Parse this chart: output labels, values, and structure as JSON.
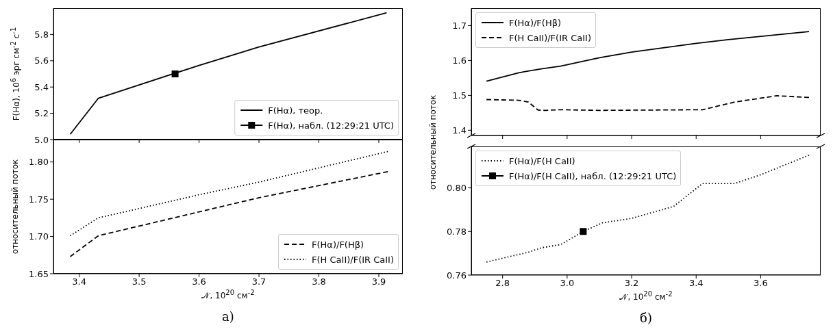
{
  "chart_data": [
    {
      "type": "line",
      "ylabel": "F(Hα), 10$^{6}$ эрг см$^{-2}$ с$^{-1}$",
      "xlim": [
        3.357,
        3.94
      ],
      "xticks": [
        3.4,
        3.5,
        3.6,
        3.7,
        3.8,
        3.9
      ],
      "ylim": [
        5.0,
        6.0
      ],
      "yticks": [
        {
          "value": 5,
          "label": "5.0"
        },
        5.2,
        5.4,
        5.6,
        5.8
      ],
      "tick_labels": "y",
      "legend": "bottom right",
      "grid": false,
      "series": [
        {
          "type": "line",
          "name": "F(Hα), теор.",
          "color": "#000000",
          "line_style": "solid",
          "marker": "none",
          "x": [
            3.385,
            3.432,
            3.6,
            3.7,
            3.913
          ],
          "values": [
            5.04,
            5.315,
            5.565,
            5.705,
            5.965
          ]
        },
        {
          "type": "line",
          "name": "F(Hα), набл. (12:29:21 UTC)",
          "color": "#000000",
          "line_style": "solid",
          "marker": "square",
          "x": [
            3.56
          ],
          "values": [
            5.5
          ]
        }
      ]
    },
    {
      "type": "line",
      "ylabel": "относительный поток",
      "xlabel": "𝒩, 10$^{20}$ см$^{-2}$",
      "annotations": [
        "а)"
      ],
      "xlim": [
        3.357,
        3.94
      ],
      "xticks": [
        3.4,
        3.5,
        3.6,
        3.7,
        3.8,
        3.9
      ],
      "ylim": [
        1.65,
        1.83
      ],
      "yticks": [
        1.65,
        {
          "value": 1.7,
          "label": "1.70"
        },
        1.75,
        {
          "value": 1.8,
          "label": "1.80"
        }
      ],
      "legend": "bottom right",
      "grid": false,
      "series": [
        {
          "type": "line",
          "name": "F(Hα)/F(Hβ)",
          "color": "#000000",
          "line_style": "dashed",
          "marker": "none",
          "x": [
            3.385,
            3.432,
            3.6,
            3.7,
            3.915
          ],
          "values": [
            1.673,
            1.701,
            1.733,
            1.752,
            1.787
          ]
        },
        {
          "type": "line",
          "name": "F(H CaII)/F(IR CaII)",
          "color": "#000000",
          "line_style": "dotted",
          "marker": "none",
          "x": [
            3.385,
            3.432,
            3.6,
            3.7,
            3.915
          ],
          "values": [
            1.701,
            1.725,
            1.756,
            1.773,
            1.814
          ]
        }
      ]
    },
    {
      "type": "line",
      "xlim": [
        2.703,
        3.786
      ],
      "xticks": [
        2.8,
        3,
        3.2,
        3.4,
        3.6
      ],
      "ylim": [
        1.385,
        1.75
      ],
      "yticks": [
        1.4,
        1.5,
        1.6,
        1.7
      ],
      "tick_labels": "y",
      "legend": "top left",
      "grid": false,
      "series": [
        {
          "type": "line",
          "name": "F(Hα)/F(Hβ)",
          "color": "#000000",
          "line_style": "solid",
          "marker": "none",
          "x": [
            2.75,
            2.85,
            2.92,
            2.98,
            3.1,
            3.2,
            3.4,
            3.5,
            3.75
          ],
          "values": [
            1.541,
            1.565,
            1.576,
            1.584,
            1.608,
            1.624,
            1.649,
            1.66,
            1.683
          ]
        },
        {
          "type": "line",
          "name": "F(H CaII)/F(IR CaII)",
          "color": "#000000",
          "line_style": "dashed",
          "marker": "none",
          "x": [
            2.75,
            2.85,
            2.88,
            2.91,
            2.93,
            2.98,
            3.1,
            3.42,
            3.52,
            3.65,
            3.75
          ],
          "values": [
            1.488,
            1.486,
            1.481,
            1.458,
            1.457,
            1.459,
            1.457,
            1.459,
            1.481,
            1.499,
            1.494
          ]
        }
      ]
    },
    {
      "type": "line",
      "ylabel": "относительный поток",
      "xlabel": "𝒩, 10$^{20}$ см$^{-2}$",
      "annotations": [
        "б)"
      ],
      "xlim": [
        2.703,
        3.786
      ],
      "xticks": [
        2.8,
        {
          "value": 3,
          "label": "3.0"
        },
        3.2,
        3.4,
        3.6
      ],
      "ylim": [
        0.76,
        0.819
      ],
      "yticks": [
        0.76,
        0.78,
        {
          "value": 0.8,
          "label": "0.80"
        }
      ],
      "legend": "top left",
      "grid": false,
      "series": [
        {
          "type": "line",
          "name": "F(Hα)/F(H CaII)",
          "color": "#000000",
          "line_style": "dotted",
          "marker": "none",
          "x": [
            2.75,
            2.88,
            2.92,
            2.98,
            3.05,
            3.11,
            3.2,
            3.33,
            3.42,
            3.52,
            3.6,
            3.75
          ],
          "values": [
            0.766,
            0.7705,
            0.7725,
            0.774,
            0.78,
            0.784,
            0.786,
            0.7915,
            0.802,
            0.802,
            0.806,
            0.815
          ]
        },
        {
          "type": "line",
          "name": "F(Hα)/F(H CaII), набл. (12:29:21 UTC)",
          "color": "#000000",
          "line_style": "solid",
          "marker": "square",
          "x": [
            3.05
          ],
          "values": [
            0.78
          ]
        }
      ]
    }
  ]
}
